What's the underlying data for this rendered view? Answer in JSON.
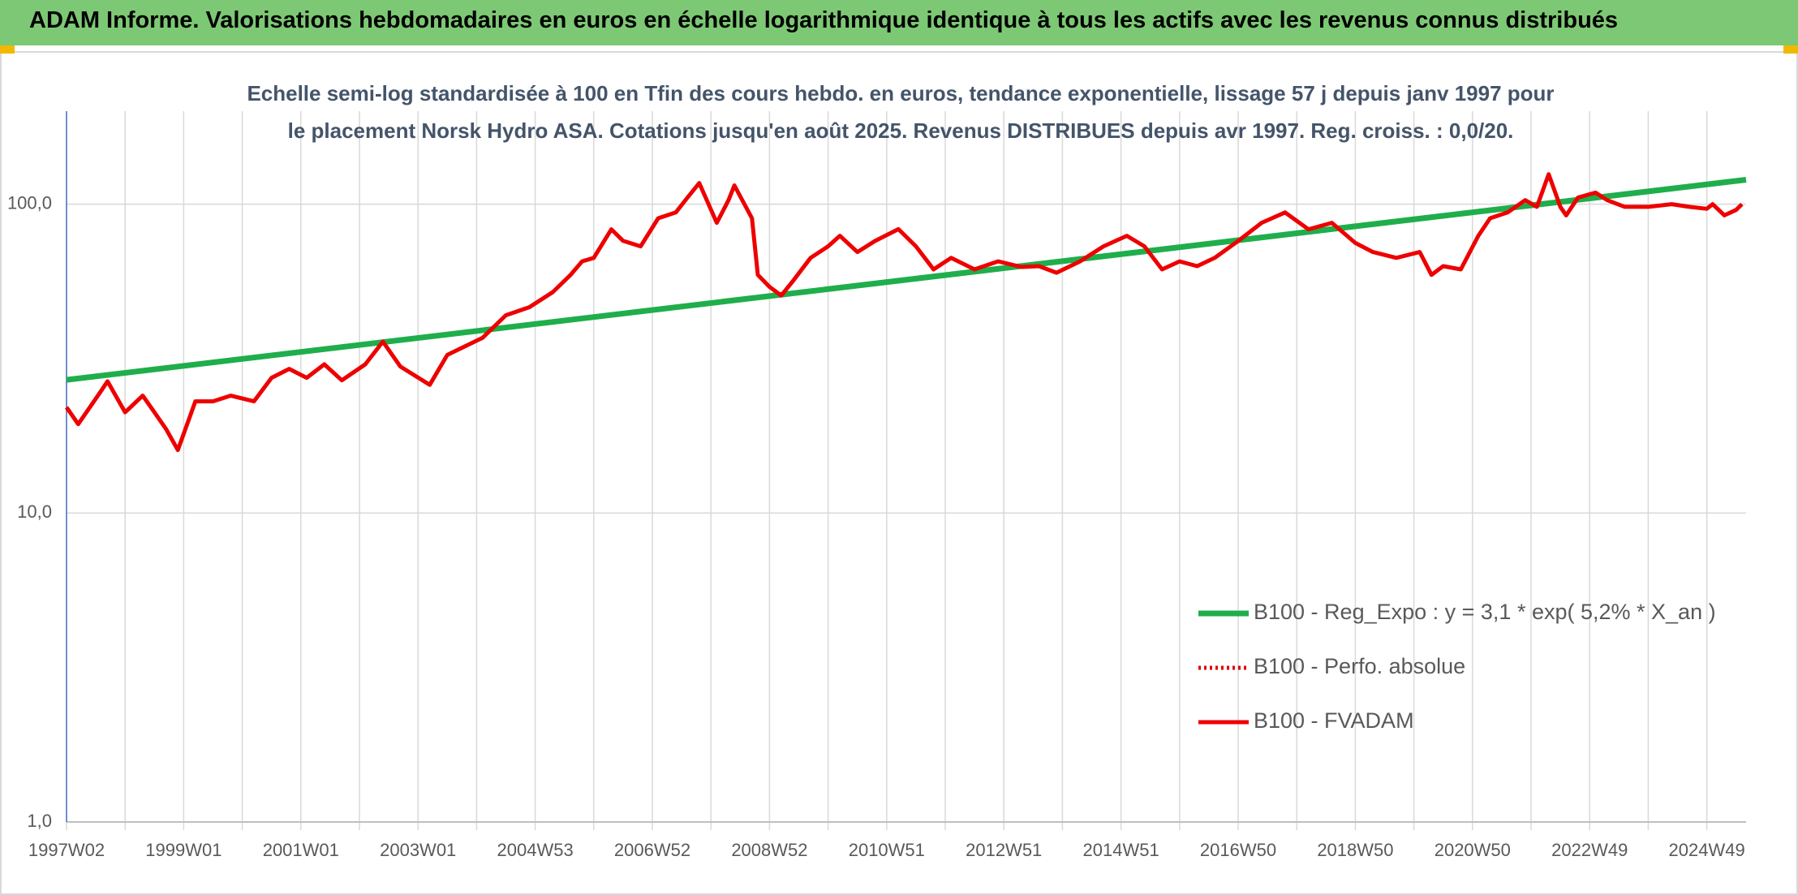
{
  "chart_data": {
    "type": "line",
    "title": "ADAM Informe. Valorisations hebdomadaires en euros en échelle logarithmique identique à tous les actifs avec les revenus connus distribués",
    "subtitle": "Echelle semi-log standardisée à 100 en Tfin des cours hebdo. en euros, tendance exponentielle, lissage 57 j depuis janv 1997 pour le placement Norsk Hydro ASA. Cotations jusqu'en août 2025. Revenus DISTRIBUES depuis avr 1997. Reg. croiss. : 0,0/20.",
    "log_scale": true,
    "grid": true,
    "legend": "bottom-right",
    "xlim": [
      1997,
      2025.67
    ],
    "xticks": [
      {
        "value": 1997,
        "label": "1997W02"
      },
      {
        "value": 1999,
        "label": "1999W01"
      },
      {
        "value": 2001,
        "label": "2001W01"
      },
      {
        "value": 2003,
        "label": "2003W01"
      },
      {
        "value": 2005,
        "label": "2004W53"
      },
      {
        "value": 2007,
        "label": "2006W52"
      },
      {
        "value": 2009,
        "label": "2008W52"
      },
      {
        "value": 2011,
        "label": "2010W51"
      },
      {
        "value": 2013,
        "label": "2012W51"
      },
      {
        "value": 2015,
        "label": "2014W51"
      },
      {
        "value": 2017,
        "label": "2016W50"
      },
      {
        "value": 2019,
        "label": "2018W50"
      },
      {
        "value": 2021,
        "label": "2020W50"
      },
      {
        "value": 2023,
        "label": "2022W49"
      },
      {
        "value": 2025,
        "label": "2024W49"
      }
    ],
    "x_minor_ticks": [
      1998,
      2000,
      2002,
      2004,
      2006,
      2008,
      2010,
      2012,
      2014,
      2016,
      2018,
      2020,
      2022,
      2024
    ],
    "ylim": [
      1,
      200
    ],
    "yticks": [
      {
        "value": 1,
        "label": "1,0"
      },
      {
        "value": 10,
        "label": "10,0"
      },
      {
        "value": 100,
        "label": "100,0"
      }
    ],
    "series": [
      {
        "name": "B100 - Reg_Expo : y = 3,1 * exp( 5,2% *  X_an )",
        "color": "#1fae4b",
        "style": "solid",
        "x": [
          1997,
          2025.67
        ],
        "values": [
          27,
          120
        ]
      },
      {
        "name": "B100 - Perfo. absolue",
        "color": "#e00000",
        "style": "dotted",
        "x": [],
        "values": []
      },
      {
        "name": "B100 - FVADAM",
        "color": "#ee0000",
        "style": "solid",
        "x": [
          1997.0,
          1997.2,
          1997.6,
          1997.7,
          1998.0,
          1998.3,
          1998.5,
          1998.7,
          1998.9,
          1999.2,
          1999.5,
          1999.8,
          2000.2,
          2000.5,
          2000.8,
          2001.1,
          2001.4,
          2001.7,
          2002.1,
          2002.4,
          2002.7,
          2003.2,
          2003.5,
          2004.1,
          2004.5,
          2004.9,
          2005.3,
          2005.6,
          2005.8,
          2006.0,
          2006.3,
          2006.5,
          2006.8,
          2007.1,
          2007.4,
          2007.6,
          2007.8,
          2008.1,
          2008.3,
          2008.4,
          2008.7,
          2008.8,
          2009.0,
          2009.2,
          2009.4,
          2009.7,
          2010.0,
          2010.2,
          2010.5,
          2010.8,
          2011.2,
          2011.5,
          2011.8,
          2012.1,
          2012.5,
          2012.9,
          2013.3,
          2013.6,
          2013.9,
          2014.3,
          2014.7,
          2015.1,
          2015.4,
          2015.7,
          2016.0,
          2016.3,
          2016.6,
          2017.0,
          2017.4,
          2017.8,
          2018.2,
          2018.6,
          2019.0,
          2019.3,
          2019.7,
          2020.1,
          2020.3,
          2020.5,
          2020.8,
          2021.1,
          2021.3,
          2021.6,
          2021.9,
          2022.1,
          2022.3,
          2022.5,
          2022.6,
          2022.8,
          2023.1,
          2023.3,
          2023.6,
          2024.0,
          2024.4,
          2024.7,
          2025.0,
          2025.1,
          2025.3,
          2025.5,
          2025.6
        ],
        "values": [
          22,
          19.4,
          25,
          26.7,
          21.2,
          24,
          21.2,
          18.7,
          16,
          23,
          23,
          24,
          23,
          27.4,
          29.3,
          27.4,
          30.3,
          26.9,
          30.3,
          35.9,
          29.8,
          26,
          32.5,
          36.9,
          43.7,
          46.4,
          51.9,
          58.9,
          65.3,
          67,
          82.9,
          76.1,
          73,
          90,
          94,
          105,
          117,
          87,
          103,
          115,
          90,
          59,
          54,
          50.6,
          56.4,
          67,
          73,
          79,
          70,
          76,
          83,
          73,
          61.5,
          67,
          61.5,
          65.3,
          62.6,
          63,
          60,
          65.3,
          73,
          79,
          73,
          61.5,
          65.3,
          63,
          67,
          76,
          87,
          94,
          82.9,
          87,
          74.9,
          70,
          67,
          70,
          59,
          63,
          61.5,
          79,
          90,
          94,
          103,
          98,
          125,
          98,
          92,
          105,
          109,
          103,
          98,
          98,
          100,
          98,
          96.6,
          100,
          92,
          95.8,
          100
        ]
      }
    ]
  }
}
